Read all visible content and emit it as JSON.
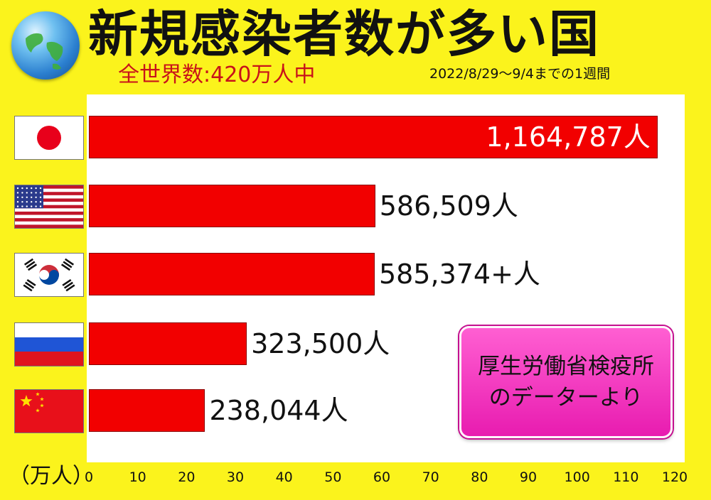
{
  "title": "新規感染者数が多い国",
  "subtitle": "全世界数:420万人中",
  "period": "2022/8/29～9/4までの1週間",
  "unit_label": "（万人）",
  "source_lines": [
    "厚生労働省検疫所",
    "のデーターより"
  ],
  "chart_data": {
    "type": "bar",
    "orientation": "horizontal",
    "categories": [
      "Japan",
      "United States",
      "South Korea",
      "Russia",
      "China"
    ],
    "category_icons": [
      "japan-flag-icon",
      "usa-flag-icon",
      "south-korea-flag-icon",
      "russia-flag-icon",
      "china-flag-icon"
    ],
    "values": [
      1164787,
      586509,
      585374,
      323500,
      238044
    ],
    "value_labels": [
      "1,164,787人",
      "586,509人",
      "585,374+人",
      "323,500人",
      "238,044人"
    ],
    "title": "新規感染者数が多い国",
    "xlabel": "（万人）",
    "ylabel": "",
    "xlim": [
      0,
      120
    ],
    "x_ticks": [
      "0",
      "10",
      "20",
      "30",
      "40",
      "50",
      "60",
      "70",
      "80",
      "90",
      "100",
      "110",
      "120"
    ],
    "bar_color": "#f20000",
    "grid": false
  }
}
